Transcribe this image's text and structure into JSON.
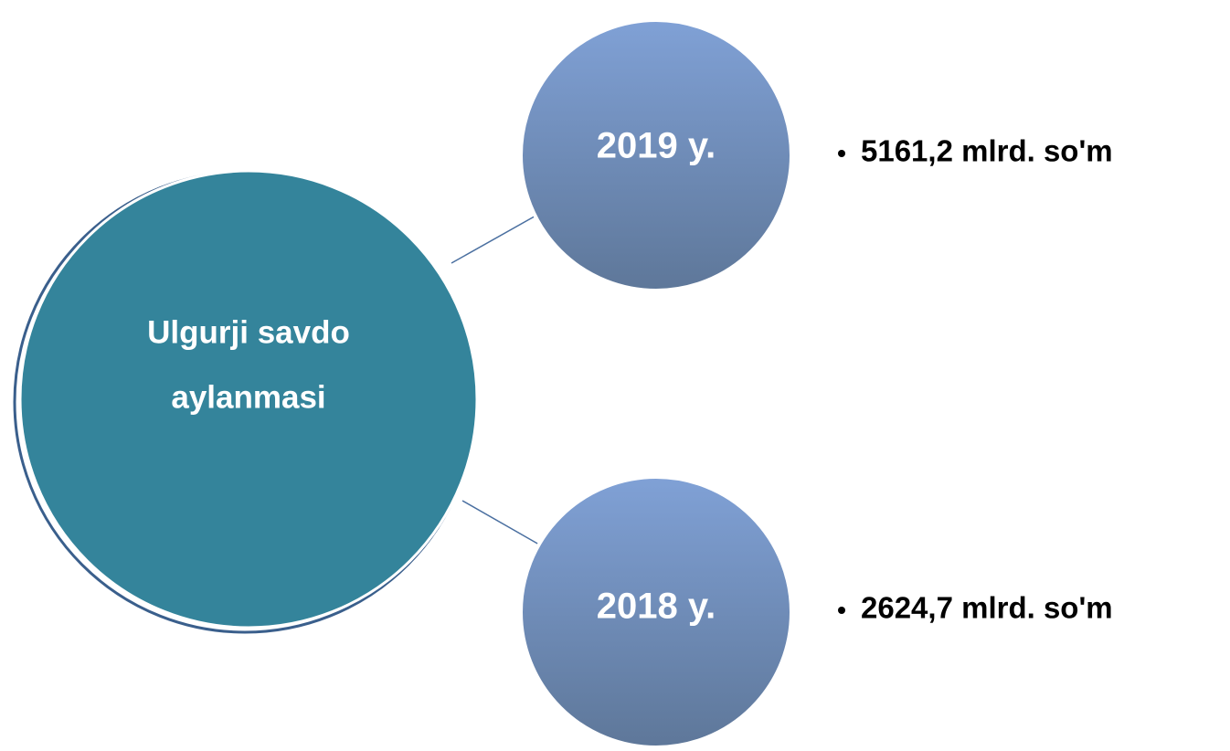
{
  "nodes": [
    {
      "label_lines": [
        "Ulgurji savdo",
        "aylanmasi"
      ]
    },
    {
      "label": "2019 y.",
      "detail": "5161,2 mlrd. so'm"
    },
    {
      "label": "2018 y.",
      "detail": "2624,7 mlrd. so'm"
    }
  ]
}
